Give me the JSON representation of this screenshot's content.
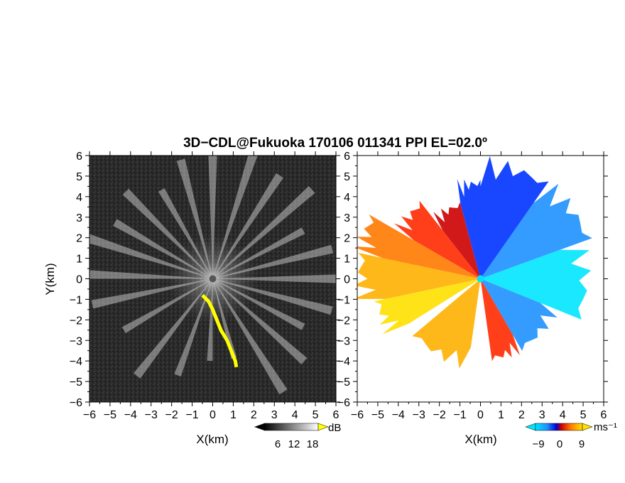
{
  "title": "3D−CDL@Fukuoka 170106 011341 PPI EL=02.0º",
  "panels": [
    {
      "id": "reflectivity",
      "xlabel": "X(km)",
      "ylabel": "Y(km)",
      "colorbar": {
        "unit": "dB",
        "ticks": [
          "6",
          "12",
          "18"
        ]
      }
    },
    {
      "id": "doppler-velocity",
      "xlabel": "X(km)",
      "ylabel": "",
      "colorbar": {
        "unit": "ms⁻¹",
        "ticks": [
          "−9",
          "0",
          "9"
        ]
      }
    }
  ],
  "colors": {
    "background_dark": "#262626",
    "echo_highlight": "#ffff00",
    "velocity_scale": [
      "#00e5ff",
      "#1e90ff",
      "#0033ff",
      "#0000cc",
      "#cc0000",
      "#ff2a00",
      "#ff7a00",
      "#ffb000",
      "#ffe000"
    ]
  },
  "chart_data": [
    {
      "type": "heatmap",
      "title": "3D−CDL@Fukuoka 170106 011341 PPI EL=02.0º",
      "xlabel": "X(km)",
      "ylabel": "Y(km)",
      "xlim": [
        -6,
        6
      ],
      "ylim": [
        -6,
        6
      ],
      "xticks": [
        "−6",
        "−5",
        "−4",
        "−3",
        "−2",
        "−1",
        "0",
        "1",
        "2",
        "3",
        "4",
        "5",
        "6"
      ],
      "yticks": [
        "−6",
        "−5",
        "−4",
        "−3",
        "−2",
        "−1",
        "0",
        "1",
        "2",
        "3",
        "4",
        "5",
        "6"
      ],
      "colorbar": {
        "label": "dB",
        "ticks": [
          6,
          12,
          18
        ]
      },
      "rays_azimuth_deg": [
        0,
        18,
        33,
        48,
        62,
        76,
        90,
        105,
        118,
        132,
        148,
        165,
        182,
        200,
        218,
        240,
        258,
        272,
        288,
        300,
        315,
        330,
        345
      ],
      "rays_range_km": [
        7.5,
        7,
        6,
        6.5,
        5,
        6,
        6.5,
        6,
        5,
        6,
        6.5,
        4,
        4,
        5,
        6,
        5,
        6,
        7,
        6.5,
        5.5,
        6,
        5,
        6
      ],
      "highlight_echo_km": [
        [
          -0.5,
          -0.8
        ],
        [
          -0.2,
          -1.1
        ],
        [
          0.0,
          -1.5
        ],
        [
          0.2,
          -2.0
        ],
        [
          0.4,
          -2.5
        ],
        [
          0.7,
          -3.0
        ],
        [
          0.9,
          -3.5
        ],
        [
          1.1,
          -4.0
        ],
        [
          1.15,
          -4.3
        ]
      ]
    },
    {
      "type": "heatmap",
      "title": "3D−CDL@Fukuoka 170106 011341 PPI EL=02.0º",
      "xlabel": "X(km)",
      "ylabel": "",
      "xlim": [
        -6,
        6
      ],
      "ylim": [
        -6,
        6
      ],
      "xticks": [
        "−6",
        "−5",
        "−4",
        "−3",
        "−2",
        "−1",
        "0",
        "1",
        "2",
        "3",
        "4",
        "5",
        "6"
      ],
      "yticks": [
        "−6",
        "−5",
        "−4",
        "−3",
        "−2",
        "−1",
        "0",
        "1",
        "2",
        "3",
        "4",
        "5",
        "6"
      ],
      "colorbar": {
        "label": "ms⁻¹",
        "ticks": [
          -9,
          0,
          9
        ]
      },
      "velocity_sectors": [
        {
          "az_from": 0,
          "az_to": 35,
          "range_km": 6,
          "velocity": -5
        },
        {
          "az_from": 35,
          "az_to": 70,
          "range_km": 6,
          "velocity": -7
        },
        {
          "az_from": 70,
          "az_to": 112,
          "range_km": 5.5,
          "velocity": -9
        },
        {
          "az_from": 112,
          "az_to": 150,
          "range_km": 4.2,
          "velocity": -6
        },
        {
          "az_from": 150,
          "az_to": 172,
          "range_km": 4.2,
          "velocity": 5
        },
        {
          "az_from": 188,
          "az_to": 230,
          "range_km": 4.5,
          "velocity": 8
        },
        {
          "az_from": 238,
          "az_to": 258,
          "range_km": 5.5,
          "velocity": 9
        },
        {
          "az_from": 258,
          "az_to": 282,
          "range_km": 6.3,
          "velocity": 8
        },
        {
          "az_from": 282,
          "az_to": 300,
          "range_km": 6.5,
          "velocity": 6
        },
        {
          "az_from": 300,
          "az_to": 322,
          "range_km": 5,
          "velocity": 5
        },
        {
          "az_from": 322,
          "az_to": 345,
          "range_km": 4,
          "velocity": 3
        },
        {
          "az_from": 345,
          "az_to": 360,
          "range_km": 5,
          "velocity": -4
        }
      ]
    }
  ]
}
